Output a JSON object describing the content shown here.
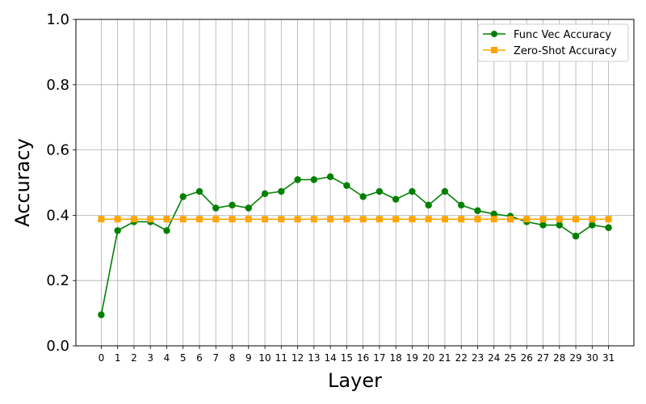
{
  "chart_data": {
    "type": "line",
    "title": "",
    "xlabel": "Layer",
    "ylabel": "Accuracy",
    "x": [
      0,
      1,
      2,
      3,
      4,
      5,
      6,
      7,
      8,
      9,
      10,
      11,
      12,
      13,
      14,
      15,
      16,
      17,
      18,
      19,
      20,
      21,
      22,
      23,
      24,
      25,
      26,
      27,
      28,
      29,
      30,
      31
    ],
    "ylim": [
      0.0,
      1.0
    ],
    "yticks": [
      "0.0",
      "0.2",
      "0.4",
      "0.6",
      "0.8",
      "1.0"
    ],
    "grid": true,
    "legend_position": "top-right",
    "series": [
      {
        "name": "Func Vec Accuracy",
        "color": "#008000",
        "marker": "circle",
        "values": [
          0.095,
          0.353,
          0.38,
          0.38,
          0.353,
          0.457,
          0.473,
          0.422,
          0.431,
          0.422,
          0.466,
          0.473,
          0.509,
          0.509,
          0.518,
          0.491,
          0.457,
          0.473,
          0.449,
          0.473,
          0.431,
          0.473,
          0.431,
          0.414,
          0.404,
          0.397,
          0.38,
          0.37,
          0.37,
          0.336,
          0.37,
          0.362
        ]
      },
      {
        "name": "Zero-Shot Accuracy",
        "color": "#FFA500",
        "marker": "square",
        "values": [
          0.388,
          0.388,
          0.388,
          0.388,
          0.388,
          0.388,
          0.388,
          0.388,
          0.388,
          0.388,
          0.388,
          0.388,
          0.388,
          0.388,
          0.388,
          0.388,
          0.388,
          0.388,
          0.388,
          0.388,
          0.388,
          0.388,
          0.388,
          0.388,
          0.388,
          0.388,
          0.388,
          0.388,
          0.388,
          0.388,
          0.388,
          0.388
        ]
      }
    ]
  }
}
